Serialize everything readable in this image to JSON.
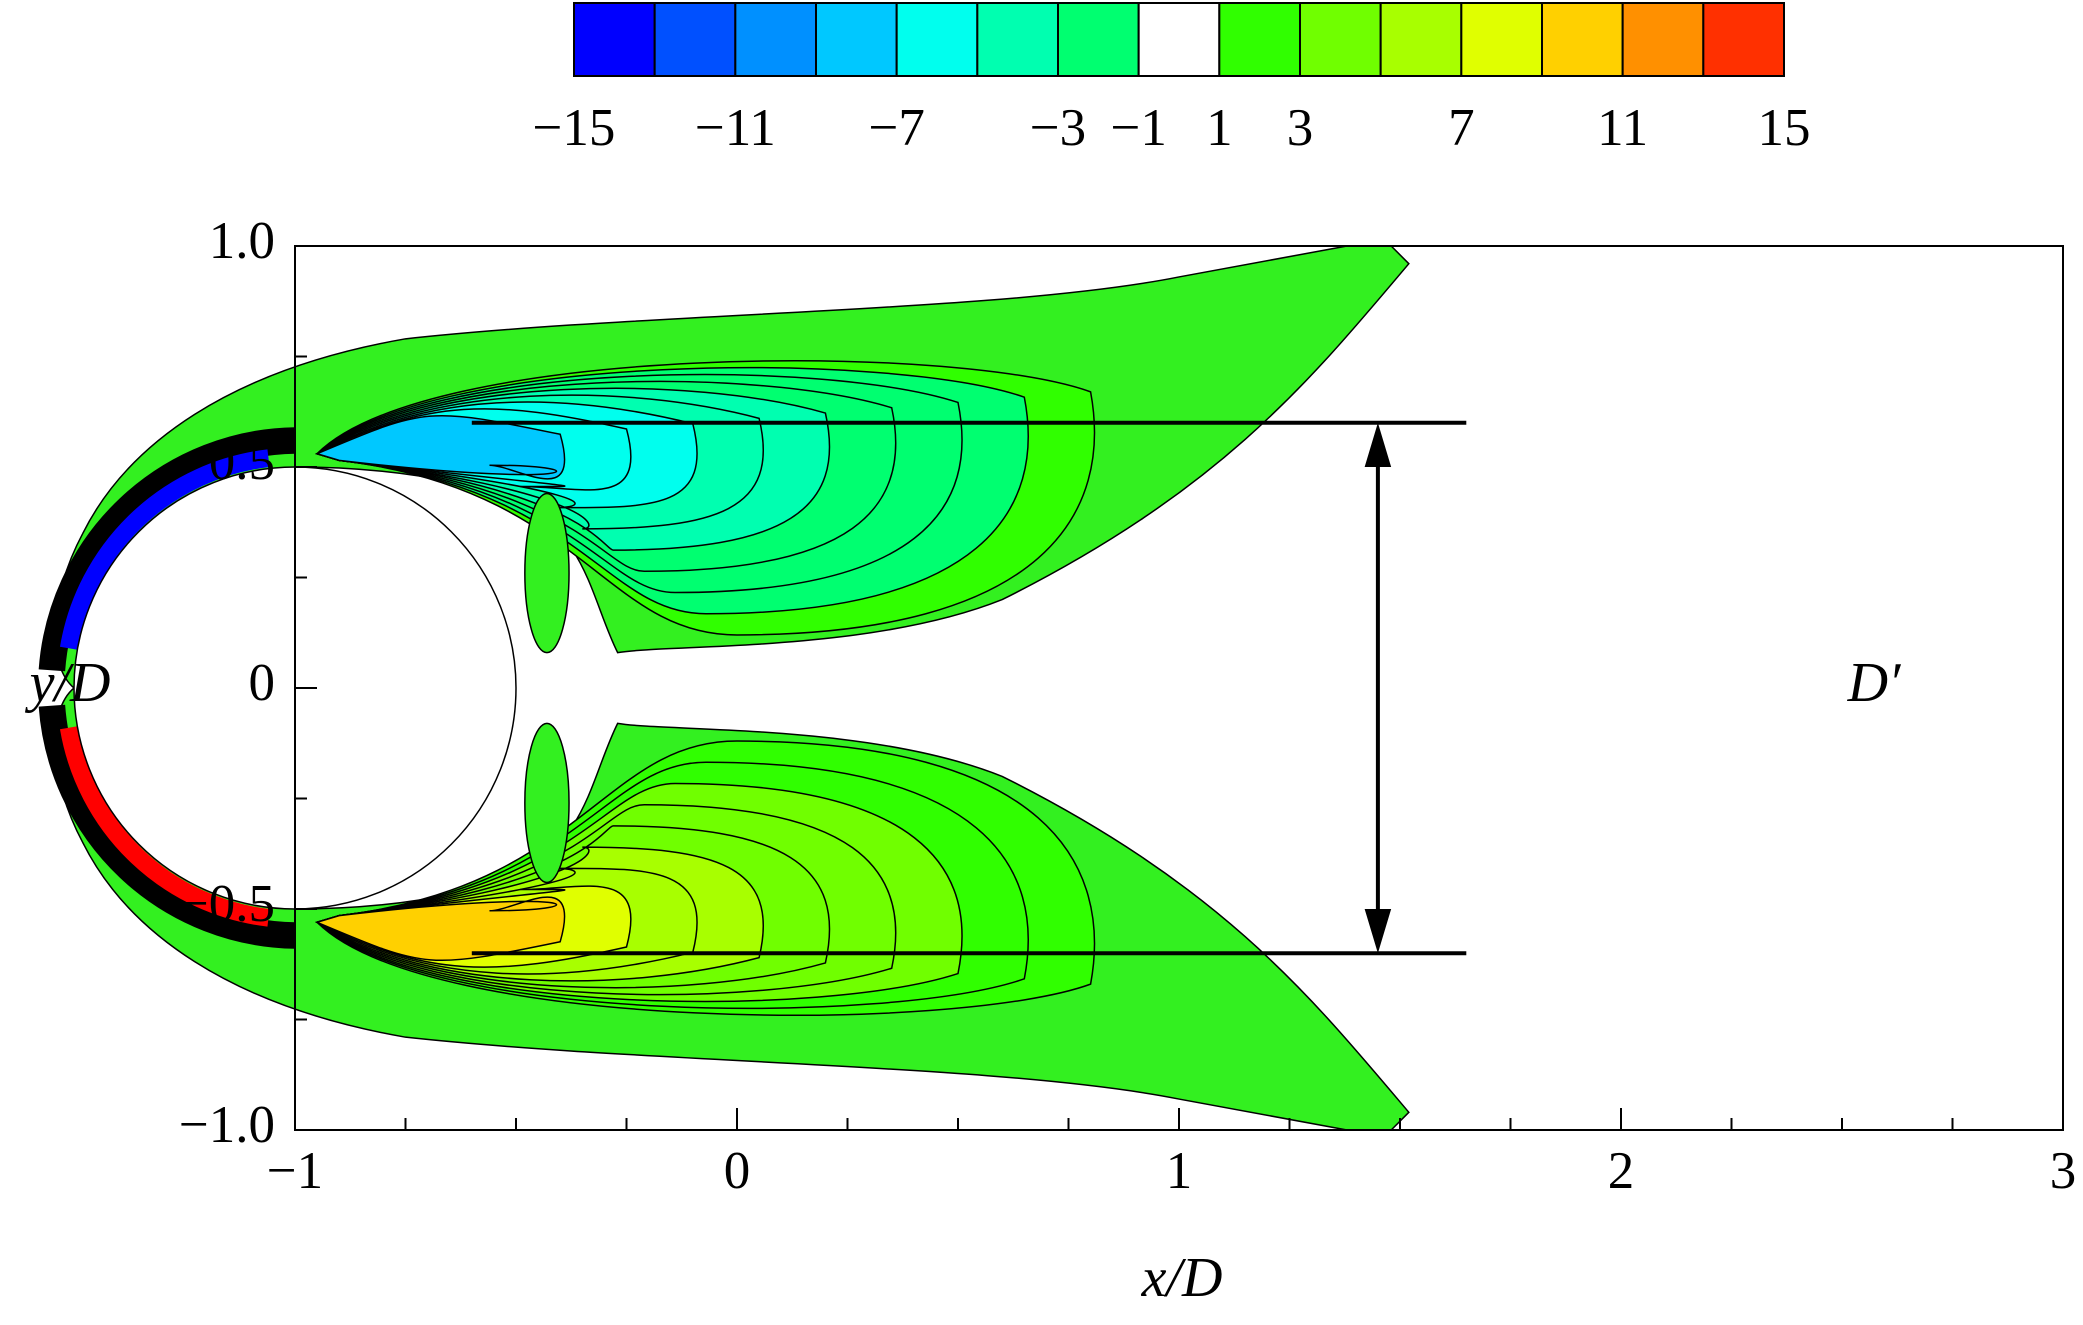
{
  "chart_data": {
    "type": "contour",
    "xlabel": "x/D",
    "ylabel": "y/D",
    "annotation": "D′",
    "xlim": [
      -1,
      3
    ],
    "ylim": [
      -1,
      1
    ],
    "xticks": [
      {
        "value": -1,
        "label": "−1"
      },
      0,
      1,
      2,
      3
    ],
    "yticks": [
      {
        "value": -1,
        "label": "−1.0"
      },
      {
        "value": -0.5,
        "label": "−0.5"
      },
      0,
      0.5,
      {
        "value": 1,
        "label": "1.0"
      }
    ],
    "xminorticks": [
      -0.75,
      -0.5,
      -0.25,
      0.25,
      0.5,
      0.75,
      1.25,
      1.5,
      1.75,
      2.25,
      2.5,
      2.75
    ],
    "yminorticks": [
      -0.75,
      -0.25,
      0.25,
      0.75
    ],
    "colorbar": {
      "levels": [
        -15,
        -13,
        -11,
        -9,
        -7,
        -5,
        -3,
        -1,
        1,
        3,
        5,
        7,
        9,
        11,
        13,
        15
      ],
      "colors": [
        "#0000ff",
        "#0050ff",
        "#0090ff",
        "#00c8ff",
        "#00ffee",
        "#00ffb0",
        "#00ff70",
        "#ffffff",
        "#30ff00",
        "#70ff00",
        "#a8ff00",
        "#e0ff00",
        "#ffd000",
        "#ff9000",
        "#ff3000"
      ],
      "ticks": [
        {
          "value": -15,
          "label": "−15"
        },
        {
          "value": -11,
          "label": "−11"
        },
        {
          "value": -7,
          "label": "−7"
        },
        {
          "value": -3,
          "label": "−3"
        },
        {
          "value": -1,
          "label": "−1"
        },
        1,
        3,
        7,
        11,
        15
      ]
    }
  }
}
